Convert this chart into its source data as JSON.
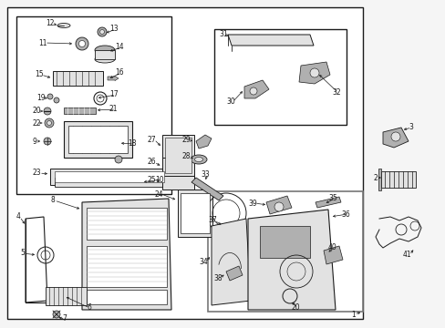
{
  "bg_color": "#f5f5f5",
  "image_bg": "#ffffff",
  "line_color": "#1a1a1a",
  "gray_fill": "#c8c8c8",
  "light_gray": "#e2e2e2",
  "mid_gray": "#b0b0b0",
  "figsize": [
    4.89,
    3.6
  ],
  "dpi": 100
}
